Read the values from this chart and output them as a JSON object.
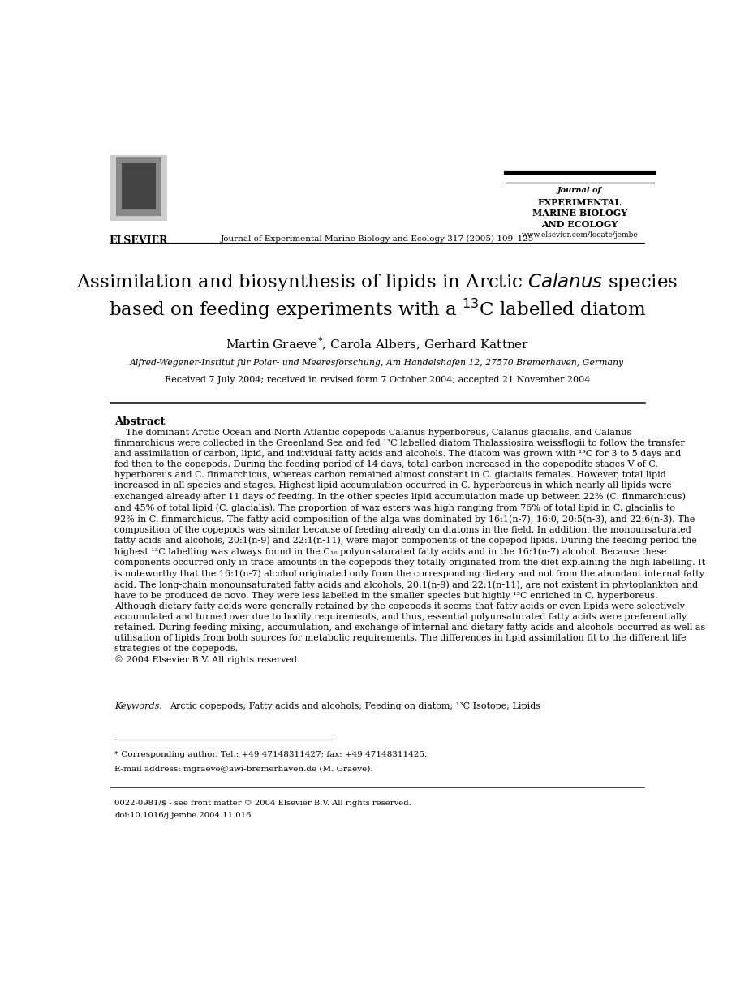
{
  "bg_color": "#ffffff",
  "page_width": 9.07,
  "page_height": 12.38,
  "dpi": 100,
  "elsevier_logo_text": "ELSEVIER",
  "journal_header_center": "Journal of Experimental Marine Biology and Ecology 317 (2005) 109–125",
  "journal_name_box": [
    "Journal of",
    "EXPERIMENTAL",
    "MARINE BIOLOGY",
    "AND ECOLOGY"
  ],
  "website": "www.elsevier.com/locate/jembe",
  "article_title_line1": "Assimilation and biosynthesis of lipids in Arctic $\\it{Calanus}$ species",
  "article_title_line2": "based on feeding experiments with a $^{13}$C labelled diatom",
  "authors": "Martin Graeve$^{*}$, Carola Albers, Gerhard Kattner",
  "affiliation": "Alfred-Wegener-Institut für Polar- und Meeresforschung, Am Handelshafen 12, 27570 Bremerhaven, Germany",
  "received": "Received 7 July 2004; received in revised form 7 October 2004; accepted 21 November 2004",
  "abstract_heading": "Abstract",
  "keywords_label": "Keywords:",
  "keywords_text": "Arctic copepods; Fatty acids and alcohols; Feeding on diatom; ¹³C Isotope; Lipids",
  "footnote_star": "* Corresponding author. Tel.: +49 47148311427; fax: +49 47148311425.",
  "footnote_email": "E-mail address: mgraeve@awi-bremerhaven.de (M. Graeve).",
  "footnote_issn": "0022-0981/$ - see front matter © 2004 Elsevier B.V. All rights reserved.",
  "footnote_doi": "doi:10.1016/j.jembe.2004.11.016"
}
